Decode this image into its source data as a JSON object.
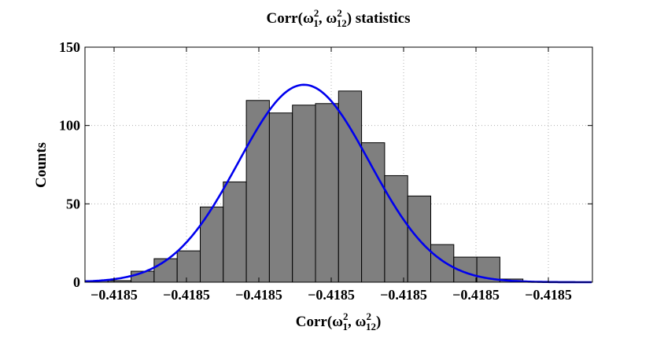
{
  "chart_data": {
    "type": "bar",
    "title": {
      "prefix": "Corr(",
      "sym1": "ω",
      "sup1": "2",
      "sub1": "1",
      "sep": ", ",
      "sym2": "ω",
      "sup2": "2",
      "sub2": "12",
      "suffix": ") statistics"
    },
    "xlabel": {
      "prefix": "Corr(",
      "sym1": "ω",
      "sup1": "2",
      "sub1": "1",
      "sep": ", ",
      "sym2": "ω",
      "sup2": "2",
      "sub2": "12",
      "suffix": ")"
    },
    "ylabel": "Counts",
    "ylim": [
      0,
      150
    ],
    "y_ticks": [
      "0",
      "50",
      "100",
      "150"
    ],
    "x_ticks": [
      "−0.4185",
      "−0.4185",
      "−0.4185",
      "−0.4185",
      "−0.4185",
      "−0.4185",
      "−0.4185"
    ],
    "grid": true,
    "bins": 19,
    "counts": [
      1,
      1,
      7,
      15,
      20,
      48,
      64,
      116,
      108,
      113,
      114,
      122,
      89,
      68,
      55,
      24,
      16,
      16,
      2
    ],
    "fit_curve": {
      "type": "gaussian",
      "peak": 126,
      "peak_bin_position": 9.5,
      "sigma_bins": 2.85
    },
    "colors": {
      "bars": "#7f7f7f",
      "bar_edge": "#000000",
      "fit": "#0000ee",
      "grid": "#b0b0b0"
    }
  }
}
